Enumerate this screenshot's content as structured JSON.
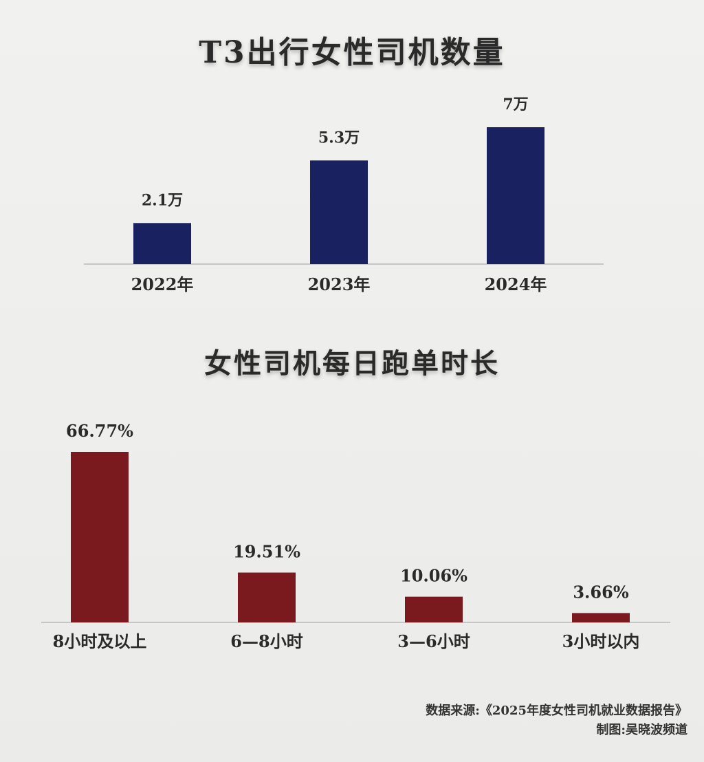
{
  "colors": {
    "bar1": "#1a2160",
    "bar2": "#7a1a1f",
    "axis": "#b9b9b9",
    "text": "#2a2a2a"
  },
  "titles": {
    "chart1": "T3出行女性司机数量",
    "chart2": "女性司机每日跑单时长"
  },
  "footer": {
    "source": "数据来源:《2025年度女性司机就业数据报告》",
    "credit": "制图:吴晓波频道"
  },
  "chart_data": [
    {
      "type": "bar",
      "title": "T3出行女性司机数量",
      "categories": [
        "2022年",
        "2023年",
        "2024年"
      ],
      "values": [
        2.1,
        5.3,
        7
      ],
      "value_labels": [
        "2.1万",
        "5.3万",
        "7万"
      ],
      "unit": "万",
      "ylim": [
        0,
        7
      ],
      "grid": false,
      "color": "#1a2160"
    },
    {
      "type": "bar",
      "title": "女性司机每日跑单时长",
      "categories": [
        "8小时及以上",
        "6—8小时",
        "3—6小时",
        "3小时以内"
      ],
      "values": [
        66.77,
        19.51,
        10.06,
        3.66
      ],
      "value_labels": [
        "66.77%",
        "19.51%",
        "10.06%",
        "3.66%"
      ],
      "unit": "%",
      "ylim": [
        0,
        66.77
      ],
      "grid": false,
      "color": "#7a1a1f"
    }
  ]
}
